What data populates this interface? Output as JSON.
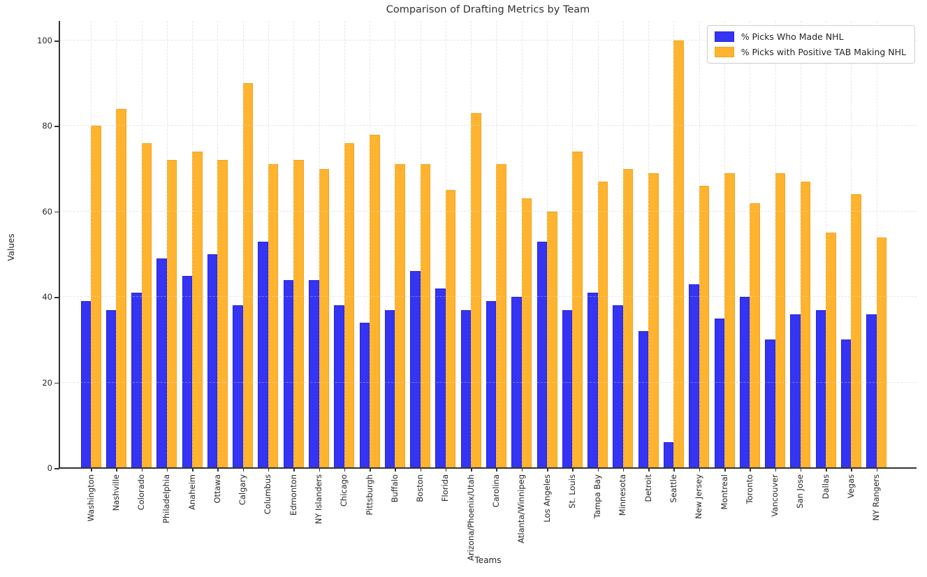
{
  "chart_data": {
    "type": "bar",
    "title": "Comparison of Drafting Metrics by Team",
    "xlabel": "Teams",
    "ylabel": "Values",
    "ylim": [
      0,
      104.5
    ],
    "yticks": [
      0,
      20,
      40,
      60,
      80,
      100
    ],
    "grid": true,
    "legend_position": "upper right",
    "categories": [
      "Washington",
      "Nashville",
      "Colorado",
      "Philadelphia",
      "Anaheim",
      "Ottawa",
      "Calgary",
      "Columbus",
      "Edmonton",
      "NY Islanders",
      "Chicago",
      "Pittsburgh",
      "Buffalo",
      "Boston",
      "Florida",
      "Arizona/Phoenix/Utah",
      "Carolina",
      "Atlanta/Winnipeg",
      "Los Angeles",
      "St. Louis",
      "Tampa Bay",
      "Minnesota",
      "Detroit",
      "Seattle",
      "New Jersey",
      "Montreal",
      "Toronto",
      "Vancouver",
      "San Jose",
      "Dallas",
      "Vegas",
      "NY Rangers"
    ],
    "series": [
      {
        "name": "% Picks Who Made NHL",
        "color": "#3434f2",
        "edge_color": "#2626dd",
        "values": [
          39,
          37,
          41,
          49,
          45,
          50,
          38,
          53,
          44,
          44,
          38,
          34,
          37,
          46,
          42,
          37,
          39,
          40,
          53,
          37,
          41,
          38,
          32,
          6,
          43,
          35,
          40,
          30,
          36,
          37,
          30,
          36
        ]
      },
      {
        "name": "% Picks with Positive TAB Making NHL",
        "color": "#ffb32e",
        "edge_color": "#f0a41f",
        "values": [
          80,
          84,
          76,
          72,
          74,
          72,
          90,
          71,
          72,
          70,
          76,
          78,
          71,
          71,
          65,
          83,
          71,
          63,
          60,
          74,
          67,
          70,
          69,
          100,
          66,
          69,
          62,
          69,
          67,
          55,
          64,
          54
        ]
      }
    ]
  },
  "colors": {
    "grid": "#d9d9d9",
    "spine": "#333333",
    "text": "#262626",
    "title": "#333333",
    "legend_border": "#cccccc",
    "background": "#ffffff"
  }
}
